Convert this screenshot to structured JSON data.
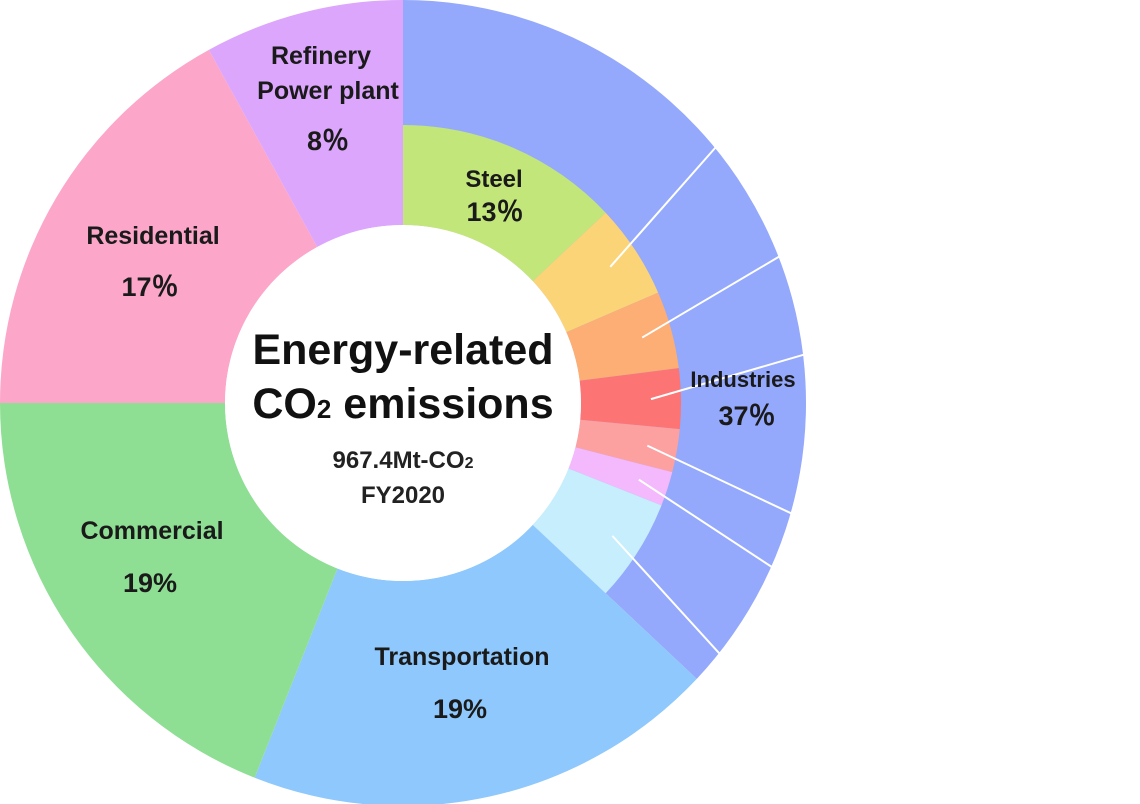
{
  "chart_data": {
    "type": "pie",
    "center": {
      "title_line1": "Energy-related",
      "title_line2": "CO",
      "title_line2_sub": "2",
      "title_line2_rest": " emissions",
      "total": "967.4Mt-CO",
      "total_sub": "2",
      "year": "FY2020"
    },
    "outer_ring": [
      {
        "name": "Industries",
        "value": 37,
        "label": "37％",
        "color": "#94a8fc"
      },
      {
        "name": "Transportation",
        "value": 19,
        "label": "19%",
        "color": "#8ec8fc"
      },
      {
        "name": "Commercial",
        "value": 19,
        "label": "19%",
        "color": "#8ede94"
      },
      {
        "name": "Residential",
        "value": 17,
        "label": "17％",
        "color": "#fca6c9"
      },
      {
        "name": "Refinery\nPower plant",
        "name_line1": "Refinery",
        "name_line2": "Power plant",
        "value": 8,
        "label": "8％",
        "color": "#dca6fc"
      }
    ],
    "inner_ring": [
      {
        "name": "Steel",
        "value": 13,
        "label": "13％",
        "color": "#c2e67a"
      },
      {
        "value": 5.5,
        "color": "#fcd478"
      },
      {
        "value": 4.5,
        "color": "#fcae74"
      },
      {
        "value": 3.5,
        "color": "#fc7474"
      },
      {
        "value": 2.5,
        "color": "#fca0a0"
      },
      {
        "value": 2,
        "color": "#f4b8fc"
      },
      {
        "value": 6,
        "color": "#c6eefc"
      }
    ]
  }
}
